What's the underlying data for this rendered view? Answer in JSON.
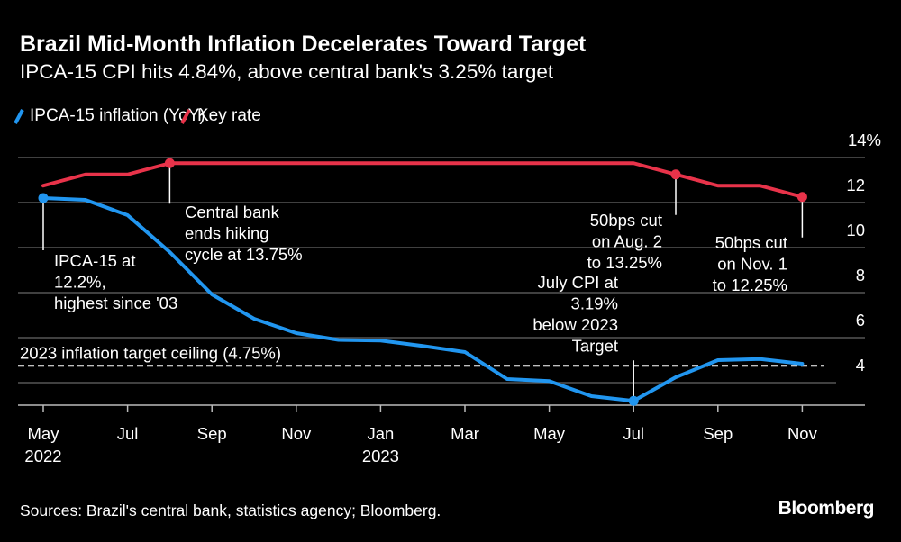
{
  "colors": {
    "background": "#000000",
    "ipca": "#2196f0",
    "key_rate": "#e8334a",
    "grid": "#555555"
  },
  "chart_data": {
    "type": "line",
    "title": "Brazil Mid-Month Inflation Decelerates Toward Target",
    "subtitle": "IPCA-15 CPI hits 4.84%, above central bank's 3.25% target",
    "x": [
      "2022-05",
      "2022-06",
      "2022-07",
      "2022-08",
      "2022-09",
      "2022-10",
      "2022-11",
      "2022-12",
      "2023-01",
      "2023-02",
      "2023-03",
      "2023-04",
      "2023-05",
      "2023-06",
      "2023-07",
      "2023-08",
      "2023-09",
      "2023-10",
      "2023-11"
    ],
    "x_tick_labels": [
      {
        "month": "May",
        "year": "2022",
        "index": 0
      },
      {
        "month": "Jul",
        "year": "",
        "index": 2
      },
      {
        "month": "Sep",
        "year": "",
        "index": 4
      },
      {
        "month": "Nov",
        "year": "",
        "index": 6
      },
      {
        "month": "Jan",
        "year": "2023",
        "index": 8
      },
      {
        "month": "Mar",
        "year": "",
        "index": 10
      },
      {
        "month": "May",
        "year": "",
        "index": 12
      },
      {
        "month": "Jul",
        "year": "",
        "index": 14
      },
      {
        "month": "Sep",
        "year": "",
        "index": 16
      },
      {
        "month": "Nov",
        "year": "",
        "index": 18
      }
    ],
    "y_tick_labels": [
      "14%",
      "12",
      "10",
      "8",
      "6",
      "4"
    ],
    "y_ticks": [
      14,
      12,
      10,
      8,
      6,
      4
    ],
    "ylim": [
      3,
      14
    ],
    "y_axis_side": "right",
    "grid": true,
    "legend_placement": "top-left",
    "series": [
      {
        "name": "IPCA-15 inflation (YoY)",
        "color": "#2196f0",
        "values": [
          12.2,
          12.12,
          11.44,
          9.8,
          7.92,
          6.84,
          6.2,
          5.9,
          5.87,
          5.63,
          5.36,
          4.16,
          4.07,
          3.4,
          3.19,
          4.24,
          5.0,
          5.05,
          4.84
        ]
      },
      {
        "name": "Key rate",
        "color": "#e8334a",
        "values": [
          12.75,
          13.25,
          13.25,
          13.75,
          13.75,
          13.75,
          13.75,
          13.75,
          13.75,
          13.75,
          13.75,
          13.75,
          13.75,
          13.75,
          13.75,
          13.25,
          12.75,
          12.75,
          12.25
        ]
      }
    ],
    "reference_line": {
      "label": "2023 inflation target ceiling (4.75%)",
      "value": 4.75
    },
    "annotations": [
      {
        "series": 0,
        "index": 0,
        "lines": [
          "IPCA-15 at",
          "12.2%,",
          "highest since '03"
        ]
      },
      {
        "series": 1,
        "index": 3,
        "lines": [
          "Central bank",
          "ends hiking",
          "cycle at 13.75%"
        ]
      },
      {
        "series": 1,
        "index": 15,
        "lines": [
          "50bps cut",
          "on Aug. 2",
          "to 13.25%"
        ]
      },
      {
        "series": 1,
        "index": 18,
        "lines": [
          "50bps cut",
          "on Nov. 1",
          "to 12.25%"
        ]
      },
      {
        "series": 0,
        "index": 14,
        "lines": [
          "July CPI at",
          "3.19%",
          "below 2023",
          "Target"
        ]
      }
    ]
  },
  "footer": {
    "source": "Sources: Brazil's central bank, statistics agency; Bloomberg.",
    "logo": "Bloomberg"
  }
}
